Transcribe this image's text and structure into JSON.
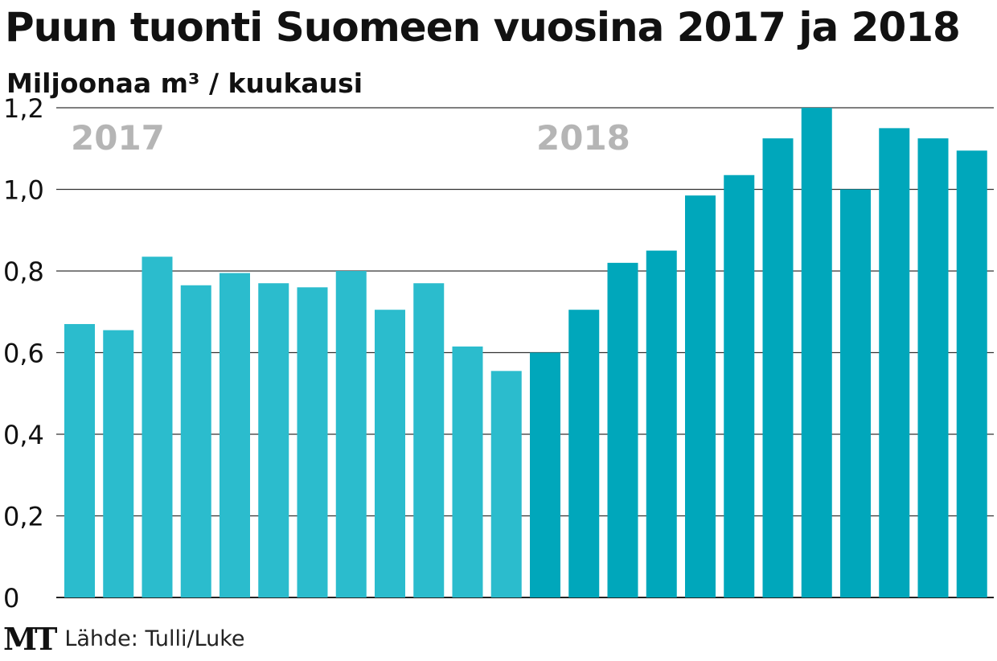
{
  "chart_data": {
    "type": "bar",
    "title": "Puun tuonti Suomeen vuosina 2017 ja 2018",
    "ylabel": "Miljoonaa m³ / kuukausi",
    "xlabel": "",
    "ylim": [
      0,
      1.2
    ],
    "yticks": [
      "0",
      "0,2",
      "0,4",
      "0,6",
      "0,8",
      "1,0",
      "1,2"
    ],
    "yticks_values": [
      0,
      0.2,
      0.4,
      0.6,
      0.8,
      1.0,
      1.2
    ],
    "grid": true,
    "series": [
      {
        "name": "2017",
        "color": "#2bbccd",
        "label_color": "#b5b5b5",
        "values": [
          0.67,
          0.655,
          0.835,
          0.765,
          0.795,
          0.77,
          0.76,
          0.8,
          0.705,
          0.77,
          0.615,
          0.555
        ]
      },
      {
        "name": "2018",
        "color": "#00a7bb",
        "label_color": "#b5b5b5",
        "values": [
          0.6,
          0.705,
          0.82,
          0.85,
          0.985,
          1.035,
          1.125,
          1.2,
          1.0,
          1.15,
          1.125,
          1.095
        ]
      }
    ]
  },
  "footer": {
    "logo": "MT",
    "source": "Lähde: Tulli/Luke"
  }
}
